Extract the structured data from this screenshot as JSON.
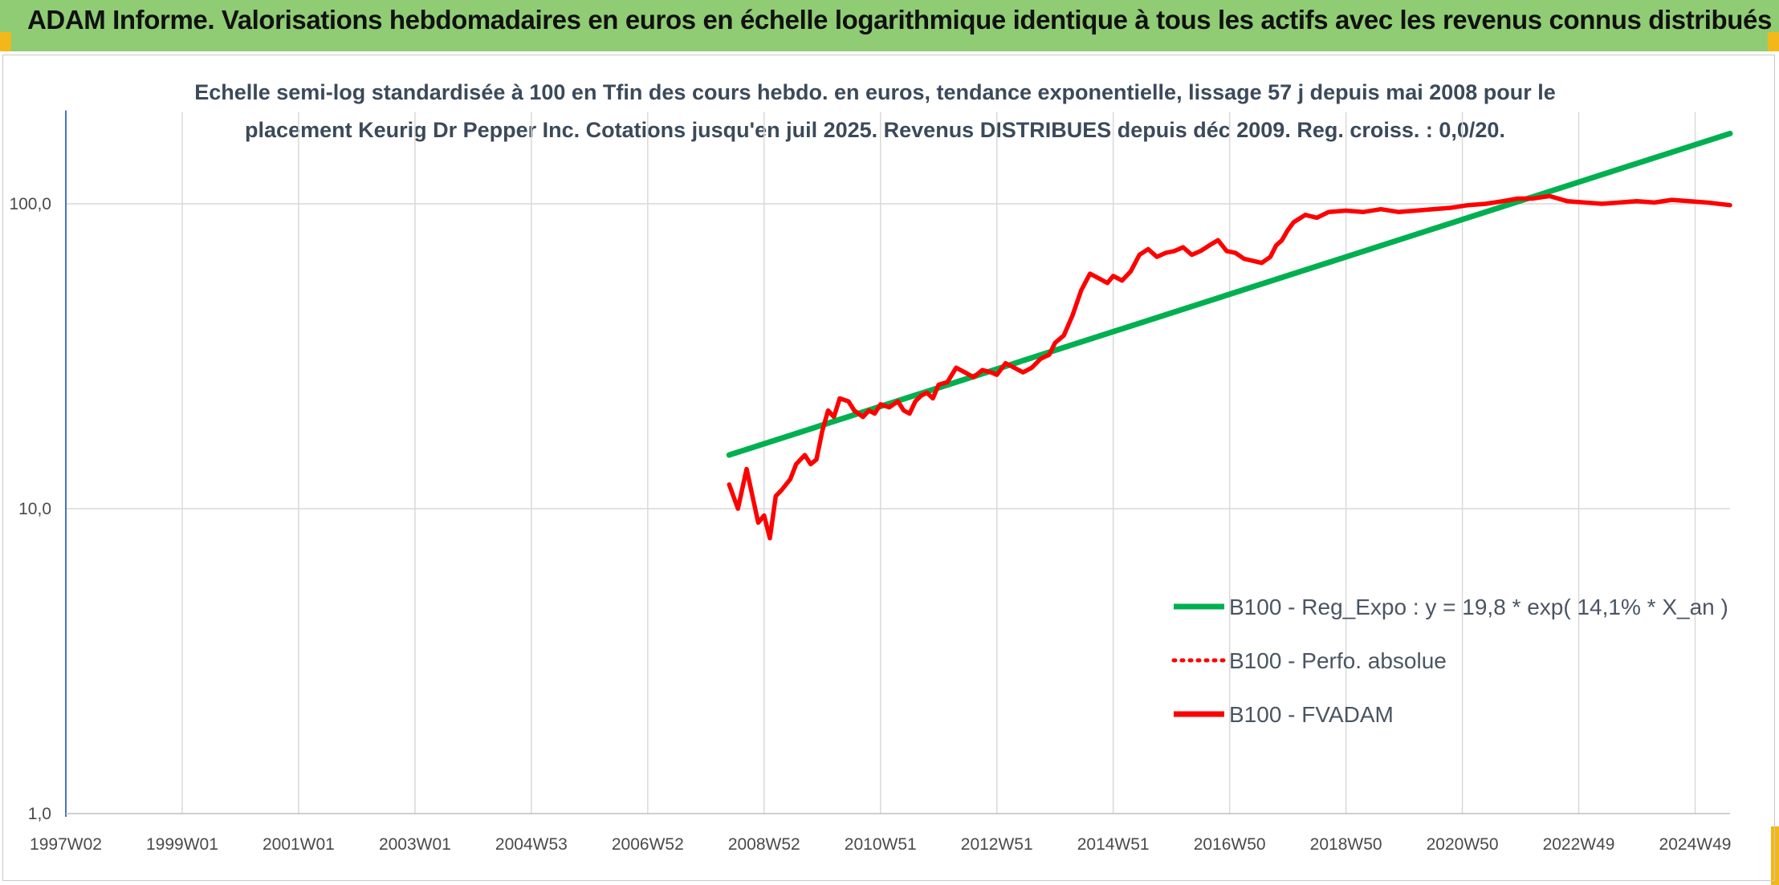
{
  "banner": {
    "title": "ADAM Informe. Valorisations hebdomadaires en euros en échelle logarithmique identique à tous les actifs avec les revenus connus distribués"
  },
  "colors": {
    "banner_bg": "#8fcc74",
    "regression": "#00b050",
    "fvadam": "#ff0000",
    "perfo": "#ff0000",
    "grid": "#d9d9d9",
    "axis": "#4472c4"
  },
  "chart_data": {
    "type": "line",
    "title": "Echelle semi-log standardisée à 100 en Tfin des cours hebdo. en euros, tendance exponentielle, lissage 57 j depuis mai 2008 pour le placement Keurig Dr Pepper Inc. Cotations jusqu'en juil 2025. Revenus DISTRIBUES depuis déc 2009. Reg. croiss. : 0,0/20.",
    "title_lines": [
      "Echelle semi-log standardisée à 100 en Tfin des cours hebdo. en euros, tendance exponentielle, lissage 57 j depuis mai 2008 pour le",
      "placement Keurig Dr Pepper Inc. Cotations jusqu'en juil 2025. Revenus DISTRIBUES depuis déc 2009. Reg. croiss. : 0,0/20."
    ],
    "y_scale": "log",
    "ylim": [
      1,
      200
    ],
    "y_ticks": [
      1,
      10,
      100
    ],
    "y_tick_labels": [
      "1,0",
      "10,0",
      "100,0"
    ],
    "xlim": [
      1997.0,
      2025.6
    ],
    "x_ticks": [
      1997.0,
      1999.0,
      2001.0,
      2003.0,
      2005.0,
      2007.0,
      2009.0,
      2011.0,
      2013.0,
      2015.0,
      2017.0,
      2019.0,
      2021.0,
      2023.0,
      2025.0
    ],
    "x_tick_labels": [
      "1997W02",
      "1999W01",
      "2001W01",
      "2003W01",
      "2004W53",
      "2006W52",
      "2008W52",
      "2010W51",
      "2012W51",
      "2014W51",
      "2016W50",
      "2018W50",
      "2020W50",
      "2022W49",
      "2024W49"
    ],
    "grid": true,
    "legend_position": "bottom-right",
    "series": [
      {
        "name": "B100 - Reg_Expo : y = 19,8 * exp( 14,1% *  X_an )",
        "style": "solid",
        "x": [
          2008.4,
          2025.6
        ],
        "y": [
          15.0,
          170.0
        ]
      },
      {
        "name": "B100 - Perfo. absolue",
        "style": "dotted",
        "x": [],
        "y": []
      },
      {
        "name": "B100 - FVADAM",
        "style": "solid",
        "x": [
          2008.4,
          2008.55,
          2008.7,
          2008.8,
          2008.9,
          2009.0,
          2009.1,
          2009.2,
          2009.3,
          2009.45,
          2009.55,
          2009.7,
          2009.8,
          2009.9,
          2010.0,
          2010.1,
          2010.2,
          2010.3,
          2010.45,
          2010.55,
          2010.7,
          2010.8,
          2010.9,
          2011.0,
          2011.15,
          2011.3,
          2011.4,
          2011.5,
          2011.6,
          2011.7,
          2011.8,
          2011.9,
          2012.0,
          2012.15,
          2012.3,
          2012.45,
          2012.6,
          2012.75,
          2012.9,
          2013.0,
          2013.15,
          2013.3,
          2013.45,
          2013.6,
          2013.75,
          2013.9,
          2014.0,
          2014.15,
          2014.3,
          2014.45,
          2014.6,
          2014.75,
          2014.9,
          2015.0,
          2015.15,
          2015.3,
          2015.45,
          2015.6,
          2015.75,
          2015.9,
          2016.05,
          2016.2,
          2016.35,
          2016.5,
          2016.65,
          2016.8,
          2016.95,
          2017.1,
          2017.25,
          2017.4,
          2017.55,
          2017.7,
          2017.8,
          2017.9,
          2018.0,
          2018.1,
          2018.3,
          2018.5,
          2018.7,
          2019.0,
          2019.3,
          2019.6,
          2019.9,
          2020.2,
          2020.5,
          2020.8,
          2021.1,
          2021.4,
          2021.7,
          2021.95,
          2022.2,
          2022.5,
          2022.8,
          2023.1,
          2023.4,
          2023.7,
          2024.0,
          2024.3,
          2024.6,
          2024.9,
          2025.2,
          2025.6
        ],
        "y": [
          12.0,
          10.0,
          13.5,
          11.0,
          9.0,
          9.5,
          8.0,
          11.0,
          11.5,
          12.5,
          14.0,
          15.0,
          14.0,
          14.5,
          18.0,
          21.0,
          20.0,
          23.0,
          22.5,
          21.0,
          20.0,
          21.0,
          20.5,
          22.0,
          21.5,
          22.5,
          21.0,
          20.5,
          22.5,
          23.5,
          24.0,
          23.0,
          25.5,
          26.0,
          29.0,
          28.0,
          27.0,
          28.5,
          28.0,
          27.5,
          30.0,
          29.0,
          28.0,
          29.0,
          31.0,
          32.0,
          35.0,
          37.0,
          43.0,
          52.0,
          59.0,
          57.0,
          55.0,
          58.0,
          56.0,
          60.0,
          68.0,
          71.0,
          67.0,
          69.0,
          70.0,
          72.0,
          68.0,
          70.0,
          73.0,
          76.0,
          70.0,
          69.0,
          66.0,
          65.0,
          64.0,
          67.0,
          73.0,
          76.0,
          82.0,
          87.0,
          92.0,
          90.0,
          94.0,
          95.0,
          94.0,
          96.0,
          94.0,
          95.0,
          96.0,
          97.0,
          99.0,
          100.0,
          102.0,
          104.0,
          104.0,
          106.0,
          102.0,
          101.0,
          100.0,
          101.0,
          102.0,
          101.0,
          103.0,
          102.0,
          101.0,
          99.0
        ]
      }
    ],
    "annotations": []
  }
}
